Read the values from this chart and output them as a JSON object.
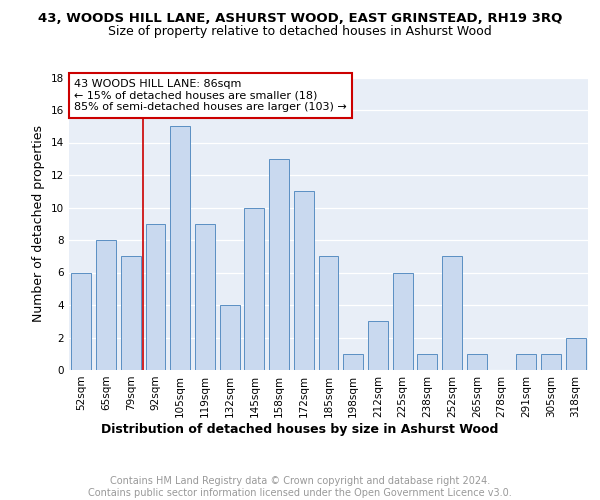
{
  "title": "43, WOODS HILL LANE, ASHURST WOOD, EAST GRINSTEAD, RH19 3RQ",
  "subtitle": "Size of property relative to detached houses in Ashurst Wood",
  "xlabel": "Distribution of detached houses by size in Ashurst Wood",
  "ylabel": "Number of detached properties",
  "bar_labels": [
    "52sqm",
    "65sqm",
    "79sqm",
    "92sqm",
    "105sqm",
    "119sqm",
    "132sqm",
    "145sqm",
    "158sqm",
    "172sqm",
    "185sqm",
    "198sqm",
    "212sqm",
    "225sqm",
    "238sqm",
    "252sqm",
    "265sqm",
    "278sqm",
    "291sqm",
    "305sqm",
    "318sqm"
  ],
  "bar_values": [
    6,
    8,
    7,
    9,
    15,
    9,
    4,
    10,
    13,
    11,
    7,
    1,
    3,
    6,
    1,
    7,
    1,
    0,
    1,
    1,
    2
  ],
  "bar_color": "#c9d9ef",
  "bar_edge_color": "#5a8fc3",
  "ylim": [
    0,
    18
  ],
  "yticks": [
    0,
    2,
    4,
    6,
    8,
    10,
    12,
    14,
    16,
    18
  ],
  "vline_index": 3,
  "vline_color": "#cc0000",
  "annotation_text": "43 WOODS HILL LANE: 86sqm\n← 15% of detached houses are smaller (18)\n85% of semi-detached houses are larger (103) →",
  "annotation_box_color": "#ffffff",
  "annotation_box_edge": "#cc0000",
  "bg_color": "#e8eef7",
  "footer": "Contains HM Land Registry data © Crown copyright and database right 2024.\nContains public sector information licensed under the Open Government Licence v3.0.",
  "title_fontsize": 9.5,
  "subtitle_fontsize": 9,
  "xlabel_fontsize": 9,
  "ylabel_fontsize": 9,
  "tick_fontsize": 7.5,
  "annotation_fontsize": 8,
  "footer_fontsize": 7
}
